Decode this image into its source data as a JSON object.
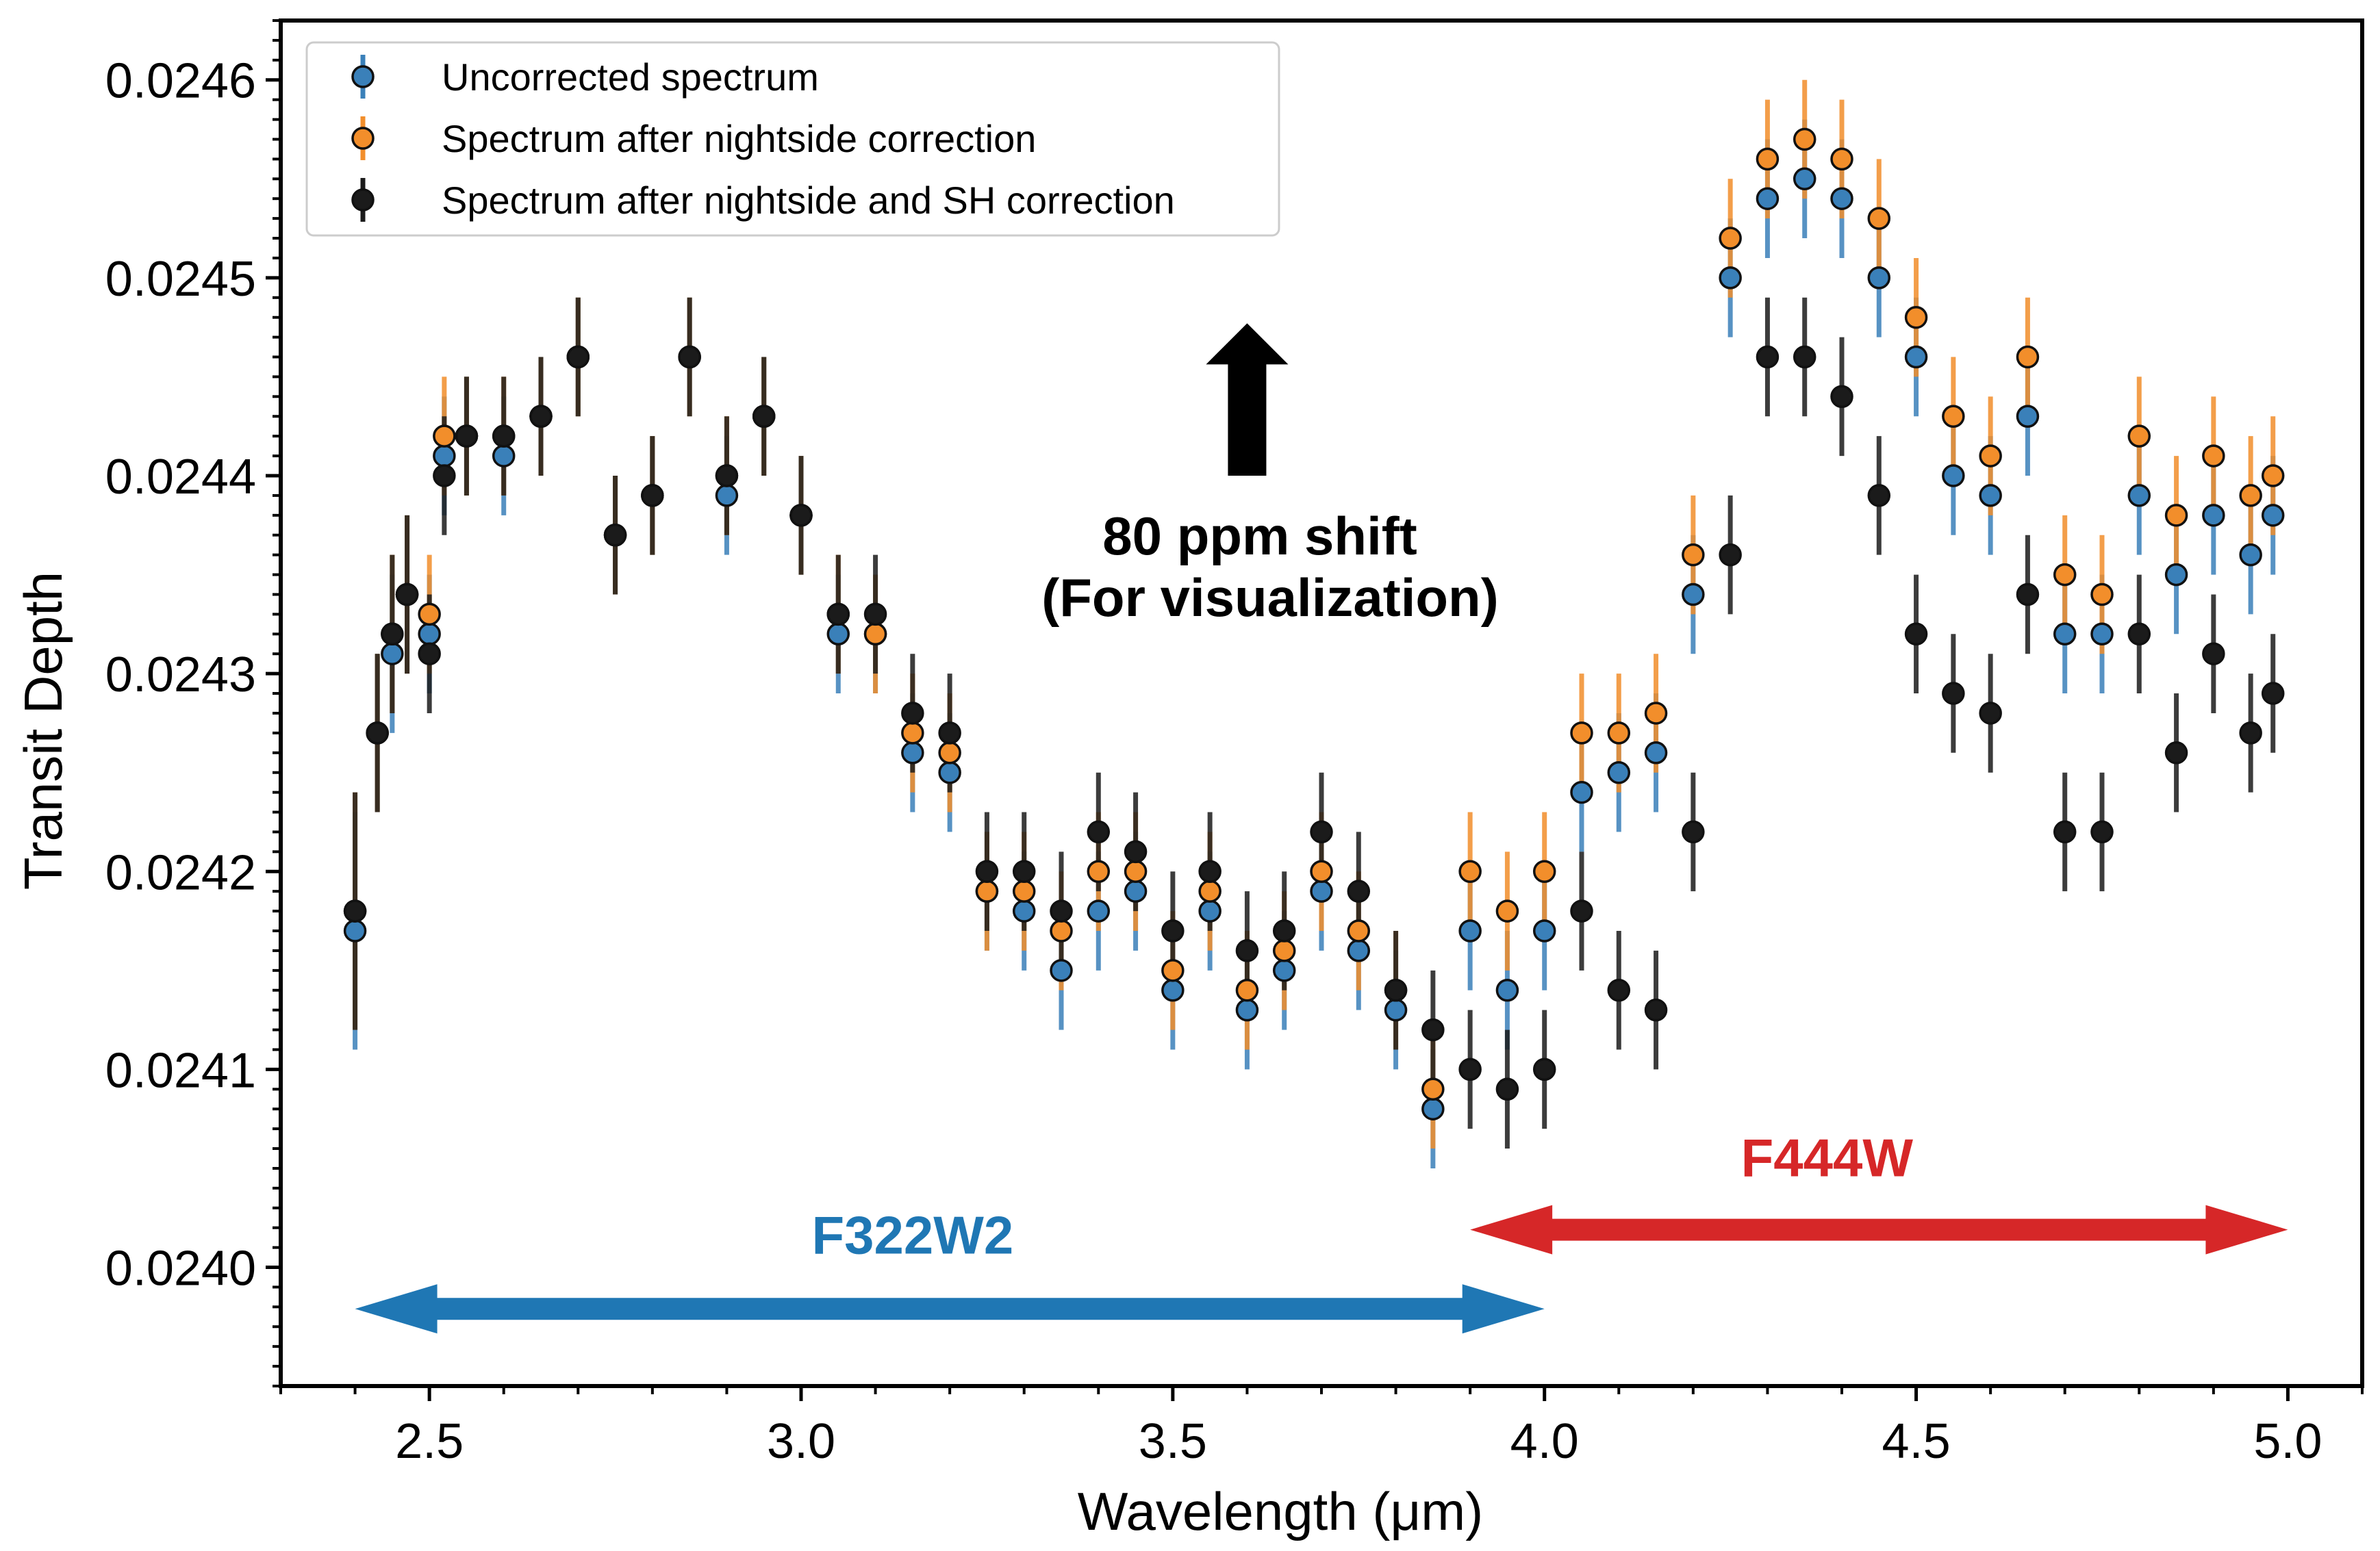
{
  "chart_data": {
    "type": "scatter",
    "xlabel": "Wavelength (μm)",
    "ylabel": "Transit Depth",
    "xlim": [
      2.3,
      5.1
    ],
    "ylim": [
      0.02394,
      0.02463
    ],
    "x_ticks": [
      2.5,
      3.0,
      3.5,
      4.0,
      4.5,
      5.0
    ],
    "x_tick_labels": [
      "2.5",
      "3.0",
      "3.5",
      "4.0",
      "4.5",
      "5.0"
    ],
    "y_ticks": [
      0.024,
      0.0241,
      0.0242,
      0.0243,
      0.0244,
      0.0245,
      0.0246
    ],
    "y_tick_labels": [
      "0.0240",
      "0.0241",
      "0.0242",
      "0.0243",
      "0.0244",
      "0.0245",
      "0.0246"
    ],
    "grid": false,
    "legend_position": "top-left",
    "series": [
      {
        "name": "Uncorrected spectrum",
        "color": "#3a80b9",
        "marker": "circle",
        "points": [
          [
            2.4,
            0.02417,
            6e-05
          ],
          [
            2.43,
            0.02427,
            4e-05
          ],
          [
            2.45,
            0.02431,
            4e-05
          ],
          [
            2.47,
            0.02434,
            4e-05
          ],
          [
            2.5,
            0.02432,
            3e-05
          ],
          [
            2.52,
            0.02441,
            3e-05
          ],
          [
            2.55,
            0.02442,
            3e-05
          ],
          [
            2.6,
            0.02441,
            3e-05
          ],
          [
            2.65,
            0.02443,
            3e-05
          ],
          [
            2.7,
            0.02446,
            3e-05
          ],
          [
            2.75,
            0.02437,
            3e-05
          ],
          [
            2.8,
            0.02439,
            3e-05
          ],
          [
            2.85,
            0.02446,
            3e-05
          ],
          [
            2.9,
            0.02439,
            3e-05
          ],
          [
            2.95,
            0.02443,
            3e-05
          ],
          [
            3.0,
            0.02438,
            3e-05
          ],
          [
            3.05,
            0.02432,
            3e-05
          ],
          [
            3.1,
            0.02432,
            3e-05
          ],
          [
            3.15,
            0.02426,
            3e-05
          ],
          [
            3.2,
            0.02425,
            3e-05
          ],
          [
            3.25,
            0.02419,
            3e-05
          ],
          [
            3.3,
            0.02418,
            3e-05
          ],
          [
            3.35,
            0.02415,
            3e-05
          ],
          [
            3.4,
            0.02418,
            3e-05
          ],
          [
            3.45,
            0.02419,
            3e-05
          ],
          [
            3.5,
            0.02414,
            3e-05
          ],
          [
            3.55,
            0.02418,
            3e-05
          ],
          [
            3.6,
            0.02413,
            3e-05
          ],
          [
            3.65,
            0.02415,
            3e-05
          ],
          [
            3.7,
            0.02419,
            3e-05
          ],
          [
            3.75,
            0.02416,
            3e-05
          ],
          [
            3.8,
            0.02413,
            3e-05
          ],
          [
            3.85,
            0.02408,
            3e-05
          ],
          [
            3.9,
            0.02417,
            3e-05
          ],
          [
            3.95,
            0.02414,
            3e-05
          ],
          [
            4.0,
            0.02417,
            3e-05
          ],
          [
            4.05,
            0.02424,
            3e-05
          ],
          [
            4.1,
            0.02425,
            3e-05
          ],
          [
            4.15,
            0.02426,
            3e-05
          ],
          [
            4.2,
            0.02434,
            3e-05
          ],
          [
            4.25,
            0.0245,
            3e-05
          ],
          [
            4.3,
            0.02454,
            3e-05
          ],
          [
            4.35,
            0.02455,
            3e-05
          ],
          [
            4.4,
            0.02454,
            3e-05
          ],
          [
            4.45,
            0.0245,
            3e-05
          ],
          [
            4.5,
            0.02446,
            3e-05
          ],
          [
            4.55,
            0.0244,
            3e-05
          ],
          [
            4.6,
            0.02439,
            3e-05
          ],
          [
            4.65,
            0.02443,
            3e-05
          ],
          [
            4.7,
            0.02432,
            3e-05
          ],
          [
            4.75,
            0.02432,
            3e-05
          ],
          [
            4.8,
            0.02439,
            3e-05
          ],
          [
            4.85,
            0.02435,
            3e-05
          ],
          [
            4.9,
            0.02438,
            3e-05
          ],
          [
            4.95,
            0.02436,
            3e-05
          ],
          [
            4.98,
            0.02438,
            3e-05
          ]
        ]
      },
      {
        "name": "Spectrum after nightside correction",
        "color": "#f28e2b",
        "marker": "circle",
        "points": [
          [
            2.4,
            0.02418,
            6e-05
          ],
          [
            2.43,
            0.02427,
            4e-05
          ],
          [
            2.45,
            0.02432,
            4e-05
          ],
          [
            2.47,
            0.02434,
            4e-05
          ],
          [
            2.5,
            0.02433,
            3e-05
          ],
          [
            2.52,
            0.02442,
            3e-05
          ],
          [
            2.55,
            0.02442,
            3e-05
          ],
          [
            2.6,
            0.02442,
            3e-05
          ],
          [
            2.65,
            0.02443,
            3e-05
          ],
          [
            2.7,
            0.02446,
            3e-05
          ],
          [
            2.75,
            0.02437,
            3e-05
          ],
          [
            2.8,
            0.02439,
            3e-05
          ],
          [
            2.85,
            0.02446,
            3e-05
          ],
          [
            2.9,
            0.0244,
            3e-05
          ],
          [
            2.95,
            0.02443,
            3e-05
          ],
          [
            3.0,
            0.02438,
            3e-05
          ],
          [
            3.05,
            0.02433,
            3e-05
          ],
          [
            3.1,
            0.02432,
            3e-05
          ],
          [
            3.15,
            0.02427,
            3e-05
          ],
          [
            3.2,
            0.02426,
            3e-05
          ],
          [
            3.25,
            0.02419,
            3e-05
          ],
          [
            3.3,
            0.02419,
            3e-05
          ],
          [
            3.35,
            0.02417,
            3e-05
          ],
          [
            3.4,
            0.0242,
            3e-05
          ],
          [
            3.45,
            0.0242,
            3e-05
          ],
          [
            3.5,
            0.02415,
            3e-05
          ],
          [
            3.55,
            0.02419,
            3e-05
          ],
          [
            3.6,
            0.02414,
            3e-05
          ],
          [
            3.65,
            0.02416,
            3e-05
          ],
          [
            3.7,
            0.0242,
            3e-05
          ],
          [
            3.75,
            0.02417,
            3e-05
          ],
          [
            3.8,
            0.02414,
            3e-05
          ],
          [
            3.85,
            0.02409,
            3e-05
          ],
          [
            3.9,
            0.0242,
            3e-05
          ],
          [
            3.95,
            0.02418,
            3e-05
          ],
          [
            4.0,
            0.0242,
            3e-05
          ],
          [
            4.05,
            0.02427,
            3e-05
          ],
          [
            4.1,
            0.02427,
            3e-05
          ],
          [
            4.15,
            0.02428,
            3e-05
          ],
          [
            4.2,
            0.02436,
            3e-05
          ],
          [
            4.25,
            0.02452,
            3e-05
          ],
          [
            4.3,
            0.02456,
            3e-05
          ],
          [
            4.35,
            0.02457,
            3e-05
          ],
          [
            4.4,
            0.02456,
            3e-05
          ],
          [
            4.45,
            0.02453,
            3e-05
          ],
          [
            4.5,
            0.02448,
            3e-05
          ],
          [
            4.55,
            0.02443,
            3e-05
          ],
          [
            4.6,
            0.02441,
            3e-05
          ],
          [
            4.65,
            0.02446,
            3e-05
          ],
          [
            4.7,
            0.02435,
            3e-05
          ],
          [
            4.75,
            0.02434,
            3e-05
          ],
          [
            4.8,
            0.02442,
            3e-05
          ],
          [
            4.85,
            0.02438,
            3e-05
          ],
          [
            4.9,
            0.02441,
            3e-05
          ],
          [
            4.95,
            0.02439,
            3e-05
          ],
          [
            4.98,
            0.0244,
            3e-05
          ]
        ]
      },
      {
        "name": "Spectrum after nightside and SH correction",
        "color": "#1b1b1b",
        "marker": "circle",
        "points": [
          [
            2.4,
            0.02418,
            6e-05
          ],
          [
            2.43,
            0.02427,
            4e-05
          ],
          [
            2.45,
            0.02432,
            4e-05
          ],
          [
            2.47,
            0.02434,
            4e-05
          ],
          [
            2.5,
            0.02431,
            3e-05
          ],
          [
            2.52,
            0.0244,
            3e-05
          ],
          [
            2.55,
            0.02442,
            3e-05
          ],
          [
            2.6,
            0.02442,
            3e-05
          ],
          [
            2.65,
            0.02443,
            3e-05
          ],
          [
            2.7,
            0.02446,
            3e-05
          ],
          [
            2.75,
            0.02437,
            3e-05
          ],
          [
            2.8,
            0.02439,
            3e-05
          ],
          [
            2.85,
            0.02446,
            3e-05
          ],
          [
            2.9,
            0.0244,
            3e-05
          ],
          [
            2.95,
            0.02443,
            3e-05
          ],
          [
            3.0,
            0.02438,
            3e-05
          ],
          [
            3.05,
            0.02433,
            3e-05
          ],
          [
            3.1,
            0.02433,
            3e-05
          ],
          [
            3.15,
            0.02428,
            3e-05
          ],
          [
            3.2,
            0.02427,
            3e-05
          ],
          [
            3.25,
            0.0242,
            3e-05
          ],
          [
            3.3,
            0.0242,
            3e-05
          ],
          [
            3.35,
            0.02418,
            3e-05
          ],
          [
            3.4,
            0.02422,
            3e-05
          ],
          [
            3.45,
            0.02421,
            3e-05
          ],
          [
            3.5,
            0.02417,
            3e-05
          ],
          [
            3.55,
            0.0242,
            3e-05
          ],
          [
            3.6,
            0.02416,
            3e-05
          ],
          [
            3.65,
            0.02417,
            3e-05
          ],
          [
            3.7,
            0.02422,
            3e-05
          ],
          [
            3.75,
            0.02419,
            3e-05
          ],
          [
            3.8,
            0.02414,
            3e-05
          ],
          [
            3.85,
            0.02412,
            3e-05
          ],
          [
            3.9,
            0.0241,
            3e-05
          ],
          [
            3.95,
            0.02409,
            3e-05
          ],
          [
            4.0,
            0.0241,
            3e-05
          ],
          [
            4.05,
            0.02418,
            3e-05
          ],
          [
            4.1,
            0.02414,
            3e-05
          ],
          [
            4.15,
            0.02413,
            3e-05
          ],
          [
            4.2,
            0.02422,
            3e-05
          ],
          [
            4.25,
            0.02436,
            3e-05
          ],
          [
            4.3,
            0.02446,
            3e-05
          ],
          [
            4.35,
            0.02446,
            3e-05
          ],
          [
            4.4,
            0.02444,
            3e-05
          ],
          [
            4.45,
            0.02439,
            3e-05
          ],
          [
            4.5,
            0.02432,
            3e-05
          ],
          [
            4.55,
            0.02429,
            3e-05
          ],
          [
            4.6,
            0.02428,
            3e-05
          ],
          [
            4.65,
            0.02434,
            3e-05
          ],
          [
            4.7,
            0.02422,
            3e-05
          ],
          [
            4.75,
            0.02422,
            3e-05
          ],
          [
            4.8,
            0.02432,
            3e-05
          ],
          [
            4.85,
            0.02426,
            3e-05
          ],
          [
            4.9,
            0.02431,
            3e-05
          ],
          [
            4.95,
            0.02427,
            3e-05
          ],
          [
            4.98,
            0.02429,
            3e-05
          ]
        ]
      }
    ],
    "annotations": {
      "shift_line1": "80 ppm shift",
      "shift_line2": "(For visualization)",
      "shift_arrow": {
        "x": 3.6,
        "y_from": 0.0244,
        "y_to": 0.024477
      },
      "band1": {
        "label": "F322W2",
        "x_from": 2.4,
        "x_to": 4.0,
        "y": 0.023979,
        "label_x": 3.15,
        "label_y": 0.024007,
        "color": "#1f77b4"
      },
      "band2": {
        "label": "F444W",
        "x_from": 3.9,
        "x_to": 5.0,
        "y": 0.024019,
        "label_x": 4.38,
        "label_y": 0.024046,
        "color": "#d62728"
      }
    }
  }
}
